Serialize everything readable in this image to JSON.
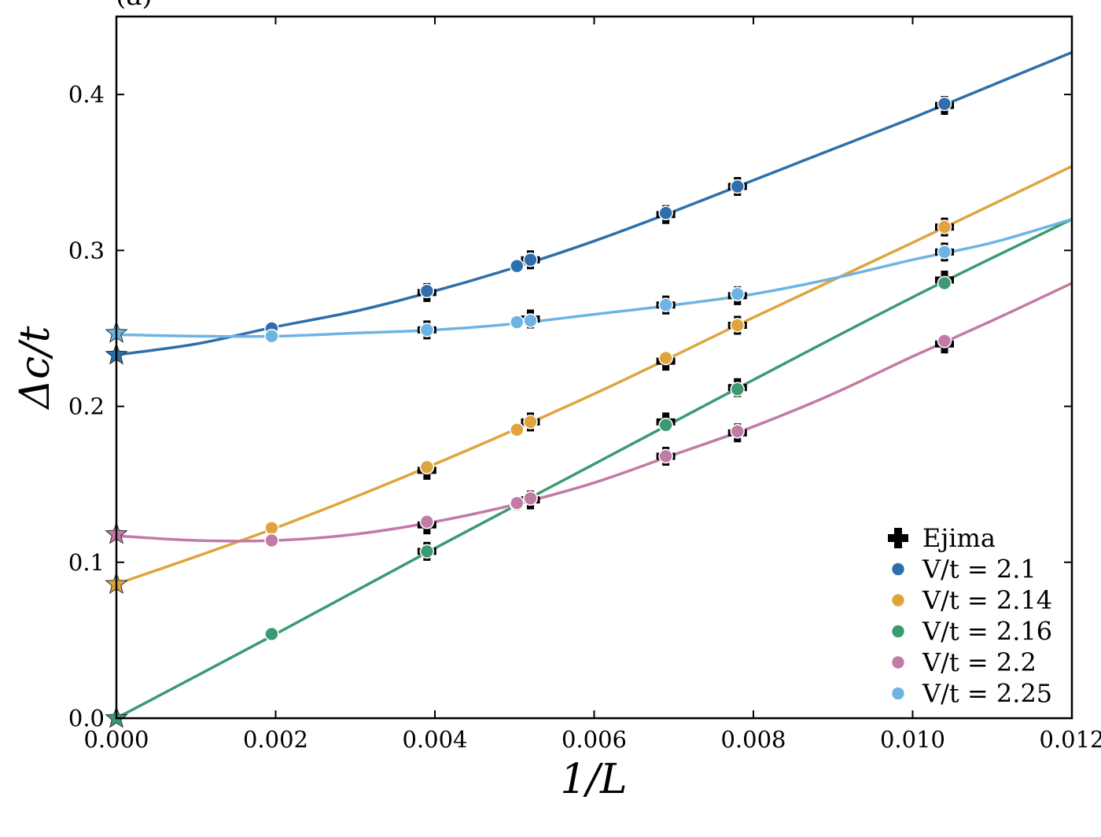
{
  "chart_data": {
    "type": "line",
    "panel_tag": "(a)",
    "xlabel": "1/L",
    "ylabel": "Δc/t",
    "xlim": [
      0.0,
      0.012
    ],
    "ylim": [
      0.0,
      0.45
    ],
    "xticks": [
      0.0,
      0.002,
      0.004,
      0.006,
      0.008,
      0.01,
      0.012
    ],
    "xtick_labels": [
      "0.000",
      "0.002",
      "0.004",
      "0.006",
      "0.008",
      "0.010",
      "0.012"
    ],
    "yticks": [
      0.0,
      0.1,
      0.2,
      0.3,
      0.4
    ],
    "ytick_labels": [
      "0.0",
      "0.1",
      "0.2",
      "0.3",
      "0.4"
    ],
    "grid": false,
    "legend_position": "bottom-right",
    "reference": {
      "name": "Ejima",
      "marker": "plus",
      "color": "#000000",
      "x": [
        0.0039,
        0.0052,
        0.0069,
        0.0078,
        0.0104
      ],
      "series_values": {
        "V/t = 2.1": [
          0.273,
          0.294,
          0.323,
          0.341,
          0.393
        ],
        "V/t = 2.14": [
          0.159,
          0.19,
          0.229,
          0.252,
          0.315
        ],
        "V/t = 2.16": [
          0.107,
          0.14,
          0.19,
          0.212,
          0.281
        ],
        "V/t = 2.2": [
          0.124,
          0.14,
          0.168,
          0.183,
          0.24
        ],
        "V/t = 2.25": [
          0.249,
          0.256,
          0.265,
          0.271,
          0.299
        ]
      }
    },
    "series": [
      {
        "name": "V/t = 2.1",
        "color": "#2e6fab",
        "x": [
          0.00195,
          0.0039,
          0.00503,
          0.0052,
          0.0069,
          0.0078,
          0.0104
        ],
        "y": [
          0.25,
          0.274,
          0.29,
          0.294,
          0.324,
          0.341,
          0.394
        ],
        "fit_y_at_x0": 0.233,
        "fit_curve": {
          "x": [
            0.0,
            0.001,
            0.002,
            0.003,
            0.004,
            0.005,
            0.006,
            0.007,
            0.008,
            0.009,
            0.01,
            0.011,
            0.012
          ],
          "y": [
            0.233,
            0.24,
            0.251,
            0.261,
            0.274,
            0.289,
            0.306,
            0.325,
            0.345,
            0.365,
            0.385,
            0.406,
            0.427
          ]
        }
      },
      {
        "name": "V/t = 2.14",
        "color": "#e0a43c",
        "x": [
          0.00195,
          0.0039,
          0.00503,
          0.0052,
          0.0069,
          0.0078,
          0.0104
        ],
        "y": [
          0.122,
          0.161,
          0.185,
          0.19,
          0.231,
          0.252,
          0.315
        ],
        "fit_y_at_x0": 0.086,
        "fit_curve": {
          "x": [
            0.0,
            0.002,
            0.004,
            0.006,
            0.008,
            0.01,
            0.012
          ],
          "y": [
            0.086,
            0.122,
            0.163,
            0.208,
            0.257,
            0.305,
            0.354
          ]
        }
      },
      {
        "name": "V/t = 2.16",
        "color": "#3c9a72",
        "x": [
          0.00195,
          0.0039,
          0.00503,
          0.0052,
          0.0069,
          0.0078,
          0.0104
        ],
        "y": [
          0.054,
          0.107,
          0.137,
          0.141,
          0.188,
          0.211,
          0.279
        ],
        "fit_y_at_x0": 0.0,
        "fit_curve": {
          "x": [
            0.0,
            0.002,
            0.004,
            0.006,
            0.008,
            0.01,
            0.012
          ],
          "y": [
            0.0,
            0.054,
            0.109,
            0.163,
            0.217,
            0.27,
            0.32
          ]
        }
      },
      {
        "name": "V/t = 2.2",
        "color": "#c27aa6",
        "x": [
          0.00195,
          0.0039,
          0.00503,
          0.0052,
          0.0069,
          0.0078,
          0.0104
        ],
        "y": [
          0.114,
          0.126,
          0.138,
          0.141,
          0.168,
          0.184,
          0.242
        ],
        "fit_y_at_x0": 0.118,
        "fit_curve": {
          "x": [
            0.0,
            0.001,
            0.002,
            0.003,
            0.004,
            0.005,
            0.006,
            0.007,
            0.008,
            0.009,
            0.01,
            0.011,
            0.012
          ],
          "y": [
            0.117,
            0.114,
            0.114,
            0.118,
            0.126,
            0.137,
            0.151,
            0.169,
            0.187,
            0.208,
            0.232,
            0.255,
            0.279
          ]
        }
      },
      {
        "name": "V/t = 2.25",
        "color": "#6eb4e3",
        "x": [
          0.00195,
          0.0039,
          0.00503,
          0.0052,
          0.0069,
          0.0078,
          0.0104
        ],
        "y": [
          0.245,
          0.249,
          0.254,
          0.255,
          0.265,
          0.272,
          0.299
        ],
        "fit_y_at_x0": 0.247,
        "fit_curve": {
          "x": [
            0.0,
            0.001,
            0.002,
            0.003,
            0.004,
            0.005,
            0.006,
            0.007,
            0.008,
            0.009,
            0.01,
            0.011,
            0.012
          ],
          "y": [
            0.246,
            0.245,
            0.245,
            0.247,
            0.249,
            0.253,
            0.259,
            0.265,
            0.272,
            0.282,
            0.294,
            0.305,
            0.32
          ]
        }
      }
    ]
  }
}
